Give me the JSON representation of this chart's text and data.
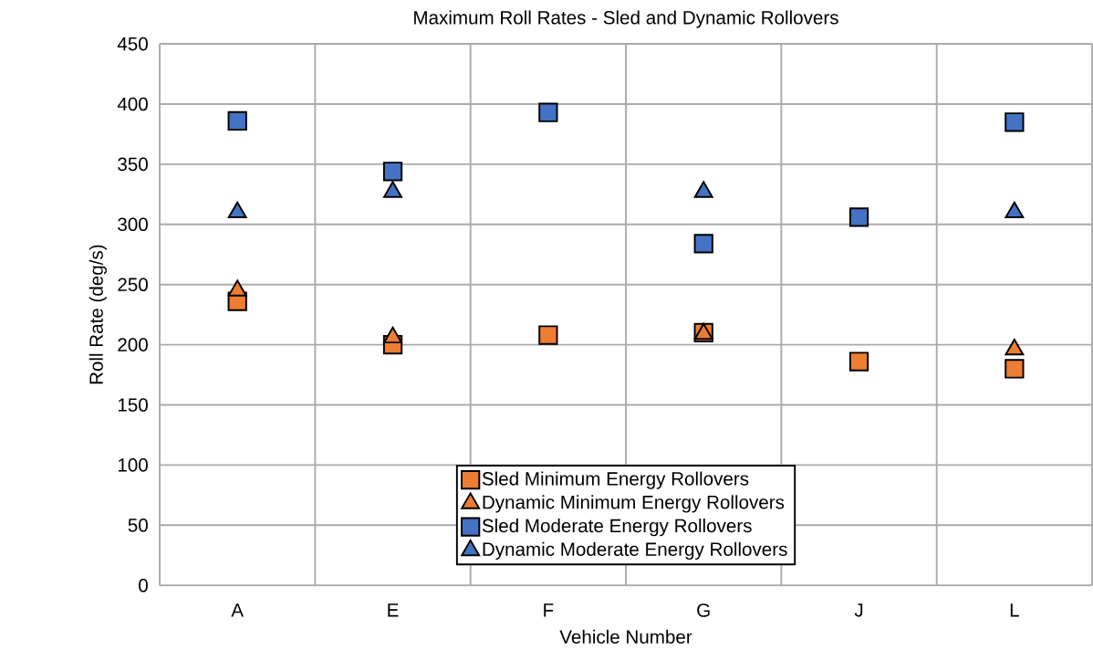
{
  "chart_data": {
    "type": "scatter",
    "title": "Maximum Roll Rates - Sled and Dynamic Rollovers",
    "xlabel": "Vehicle Number",
    "ylabel": "Roll Rate (deg/s)",
    "categories": [
      "A",
      "E",
      "F",
      "G",
      "J",
      "L"
    ],
    "series": [
      {
        "name": "Sled Minimum Energy Rollovers",
        "color": "#ed7d31",
        "marker": "square",
        "values": [
          236,
          200,
          208,
          210,
          186,
          180
        ]
      },
      {
        "name": "Dynamic Minimum Energy Rollovers",
        "color": "#ed7d31",
        "marker": "triangle",
        "values": [
          245,
          206,
          null,
          209,
          null,
          196
        ]
      },
      {
        "name": "Sled Moderate Energy Rollovers",
        "color": "#4472c4",
        "marker": "square",
        "values": [
          386,
          344,
          393,
          284,
          306,
          385
        ]
      },
      {
        "name": "Dynamic Moderate Energy Rollovers",
        "color": "#4472c4",
        "marker": "triangle",
        "values": [
          310,
          327,
          null,
          327,
          null,
          310
        ]
      }
    ],
    "ylim": [
      0,
      450
    ],
    "yticks": [
      0,
      50,
      100,
      150,
      200,
      250,
      300,
      350,
      400,
      450
    ],
    "grid": true,
    "legend": "bottom"
  }
}
